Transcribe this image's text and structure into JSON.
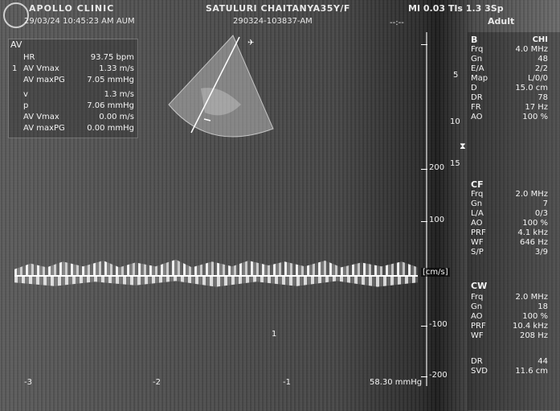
{
  "header": {
    "clinic": "APOLLO CLINIC",
    "datetime": "29/03/24 10:45:23 AM AUM",
    "patient": "SATULURI CHAITANYA35Y/F",
    "study_id": "290324-103837-AM",
    "mi": "MI 0.03 TIs 1.3",
    "sp": "3Sp",
    "preset": "Adult",
    "cursor": "--:--"
  },
  "measurements": {
    "title": "AV",
    "rows": [
      {
        "idx": "",
        "label": "HR",
        "value": "93.75 bpm"
      },
      {
        "idx": "1",
        "label": "AV Vmax",
        "value": "1.33 m/s"
      },
      {
        "idx": "",
        "label": "AV maxPG",
        "value": "7.05 mmHg"
      },
      {
        "idx": "",
        "label": "v",
        "value": "1.3 m/s"
      },
      {
        "idx": "",
        "label": "p",
        "value": "7.06 mmHg"
      },
      {
        "idx": "",
        "label": "AV Vmax",
        "value": "0.00 m/s"
      },
      {
        "idx": "",
        "label": "AV maxPG",
        "value": "0.00 mmHg"
      }
    ]
  },
  "depth_scale": [
    "5",
    "10",
    "15"
  ],
  "velocity_scale": {
    "labels": [
      "200",
      "100",
      "[cm/s]",
      "-100",
      "-200"
    ],
    "unit": "[cm/s]"
  },
  "time_axis": [
    "-3",
    "-2",
    "-1"
  ],
  "pressure_readout": "58.30 mmHg",
  "marker_one": "1",
  "side_panel": {
    "b": {
      "title": "B",
      "mode": "CHI",
      "rows": [
        {
          "k": "Frq",
          "v": "4.0 MHz"
        },
        {
          "k": "Gn",
          "v": "48"
        },
        {
          "k": "E/A",
          "v": "2/2"
        },
        {
          "k": "Map",
          "v": "L/0/0"
        },
        {
          "k": "D",
          "v": "15.0 cm"
        },
        {
          "k": "DR",
          "v": "78"
        },
        {
          "k": "FR",
          "v": "17 Hz"
        },
        {
          "k": "AO",
          "v": "100 %"
        }
      ]
    },
    "cf": {
      "title": "CF",
      "rows": [
        {
          "k": "Frq",
          "v": "2.0 MHz"
        },
        {
          "k": "Gn",
          "v": "7"
        },
        {
          "k": "L/A",
          "v": "0/3"
        },
        {
          "k": "AO",
          "v": "100 %"
        },
        {
          "k": "PRF",
          "v": "4.1 kHz"
        },
        {
          "k": "WF",
          "v": "646 Hz"
        },
        {
          "k": "S/P",
          "v": "3/9"
        }
      ]
    },
    "cw": {
      "title": "CW",
      "rows": [
        {
          "k": "Frq",
          "v": "2.0 MHz"
        },
        {
          "k": "Gn",
          "v": "18"
        },
        {
          "k": "AO",
          "v": "100 %"
        },
        {
          "k": "PRF",
          "v": "10.4 kHz"
        },
        {
          "k": "WF",
          "v": "208 Hz"
        },
        {
          "k": "DR",
          "v": "44"
        },
        {
          "k": "SVD",
          "v": "11.6 cm"
        }
      ]
    }
  }
}
